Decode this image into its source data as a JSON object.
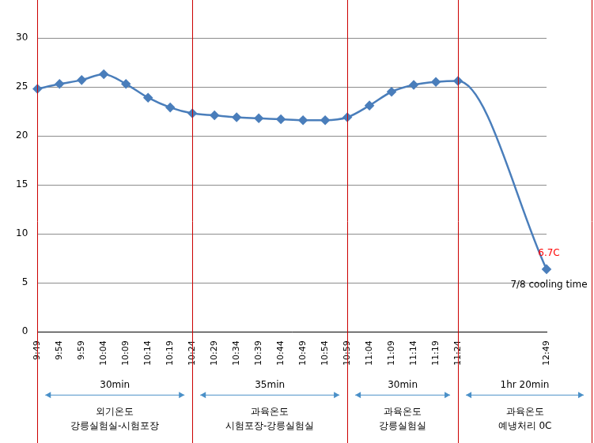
{
  "chart_data": {
    "type": "line",
    "categories": [
      "9:49",
      "9:54",
      "9:59",
      "10:04",
      "10:09",
      "10:14",
      "10:19",
      "10:24",
      "10:29",
      "10:34",
      "10:39",
      "10:44",
      "10:49",
      "10:54",
      "10:59",
      "11:04",
      "11:09",
      "11:14",
      "11:19",
      "11:24",
      null,
      null,
      null,
      "12:49"
    ],
    "values": [
      24.8,
      25.3,
      25.7,
      26.3,
      25.3,
      23.9,
      22.9,
      22.3,
      22.1,
      21.9,
      21.8,
      21.7,
      21.6,
      21.6,
      21.9,
      23.1,
      24.5,
      25.2,
      25.5,
      25.6,
      null,
      null,
      null,
      6.4
    ],
    "color": "#4a7ebb",
    "marker": "diamond",
    "ylim": [
      0,
      30
    ],
    "yticks": [
      0,
      5,
      10,
      15,
      20,
      25,
      30
    ],
    "grid": true,
    "annotations": [
      {
        "text": "6.7C",
        "color": "#ff0000"
      },
      {
        "text": "7/8 cooling time"
      }
    ],
    "segments": [
      {
        "start": "9:49",
        "duration": "30min",
        "text": [
          "외기온도",
          "강릉실험실-시험포장"
        ]
      },
      {
        "start": "10:24",
        "duration": "35min",
        "text": [
          "과육온도",
          "시험포장-강릉실험실"
        ]
      },
      {
        "start": "10:59",
        "duration": "30min",
        "text": [
          "과육온도",
          "강릉실험실"
        ]
      },
      {
        "start": "11:24",
        "duration": "1hr 20min",
        "text": [
          "과육온도",
          "예냉처리 0C"
        ]
      }
    ]
  }
}
